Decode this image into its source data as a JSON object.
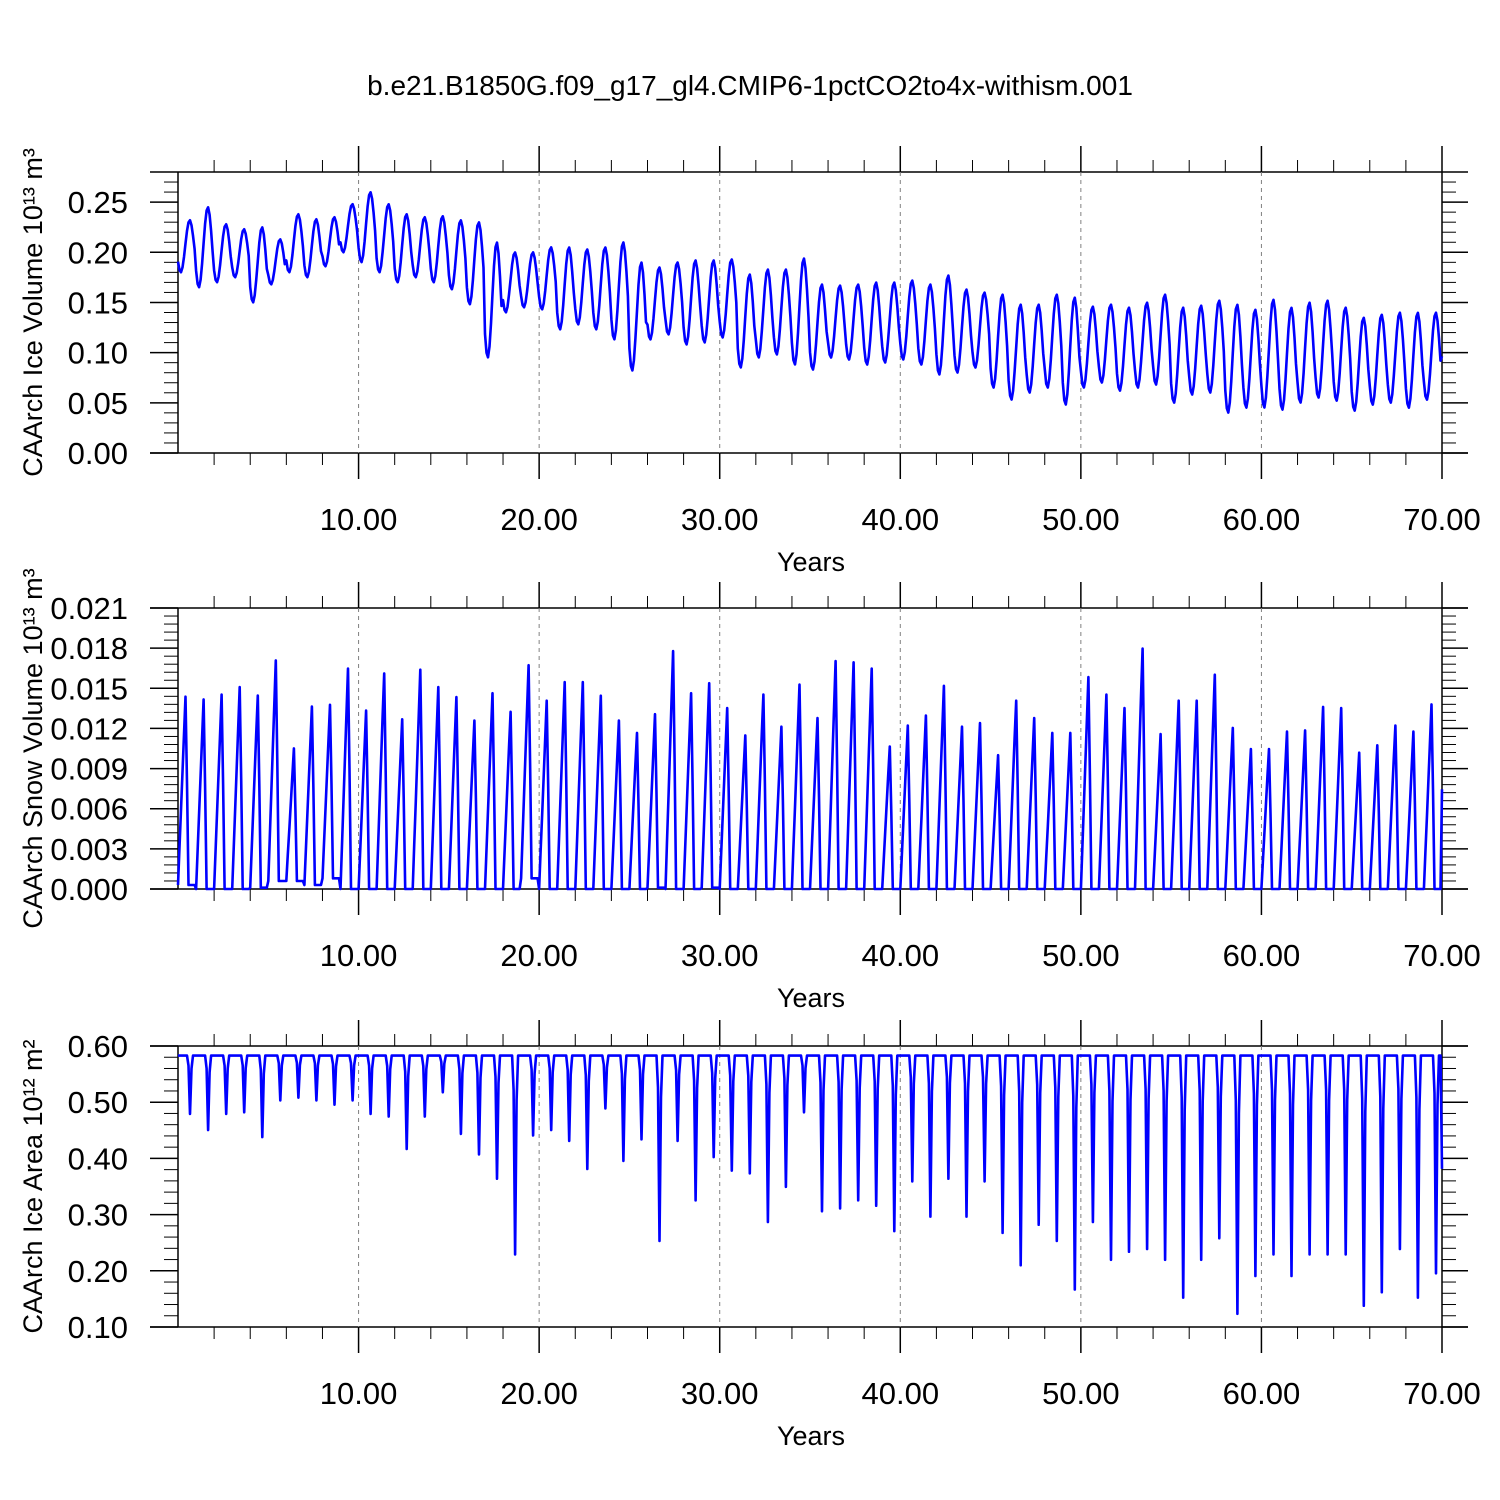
{
  "figure": {
    "title": "b.e21.B1850G.f09_g17_gl4.CMIP6-1pctCO2to4x-withism.001"
  },
  "colors": {
    "series": "#0000ff",
    "axis": "#000000",
    "grid": "#808080"
  },
  "chart_data": [
    {
      "type": "line",
      "name": "ice-volume",
      "ylabel": "CAArch Ice Volume 10¹³ m³",
      "xlabel": "Years",
      "xlim": [
        0,
        70
      ],
      "ylim": [
        0,
        0.28
      ],
      "xticks": [
        10,
        20,
        30,
        40,
        50,
        60,
        70
      ],
      "xtick_labels": [
        "10.00",
        "20.00",
        "30.00",
        "40.00",
        "50.00",
        "60.00",
        "70.00"
      ],
      "yticks": [
        0,
        0.05,
        0.1,
        0.15,
        0.2,
        0.25
      ],
      "ytick_labels": [
        "0.00",
        "0.05",
        "0.10",
        "0.15",
        "0.20",
        "0.25"
      ],
      "grid": "vertical dashed at major x ticks",
      "year_max": [
        0.232,
        0.245,
        0.228,
        0.223,
        0.225,
        0.213,
        0.238,
        0.233,
        0.235,
        0.248,
        0.26,
        0.248,
        0.238,
        0.235,
        0.236,
        0.232,
        0.23,
        0.21,
        0.2,
        0.2,
        0.205,
        0.205,
        0.203,
        0.205,
        0.21,
        0.19,
        0.185,
        0.19,
        0.192,
        0.192,
        0.193,
        0.178,
        0.183,
        0.183,
        0.194,
        0.168,
        0.167,
        0.168,
        0.17,
        0.17,
        0.172,
        0.168,
        0.177,
        0.163,
        0.16,
        0.158,
        0.148,
        0.148,
        0.158,
        0.155,
        0.146,
        0.148,
        0.145,
        0.15,
        0.158,
        0.145,
        0.147,
        0.152,
        0.148,
        0.143,
        0.153,
        0.145,
        0.15,
        0.152,
        0.145,
        0.135,
        0.138,
        0.14,
        0.14,
        0.14
      ],
      "year_min": [
        0.18,
        0.165,
        0.17,
        0.175,
        0.15,
        0.168,
        0.18,
        0.175,
        0.186,
        0.2,
        0.19,
        0.18,
        0.17,
        0.175,
        0.17,
        0.163,
        0.148,
        0.095,
        0.14,
        0.145,
        0.143,
        0.123,
        0.128,
        0.123,
        0.113,
        0.082,
        0.113,
        0.118,
        0.108,
        0.11,
        0.115,
        0.085,
        0.095,
        0.098,
        0.088,
        0.083,
        0.095,
        0.093,
        0.088,
        0.09,
        0.093,
        0.088,
        0.078,
        0.08,
        0.085,
        0.065,
        0.053,
        0.06,
        0.065,
        0.048,
        0.065,
        0.07,
        0.062,
        0.065,
        0.068,
        0.05,
        0.058,
        0.06,
        0.04,
        0.045,
        0.045,
        0.043,
        0.05,
        0.055,
        0.052,
        0.042,
        0.048,
        0.05,
        0.045,
        0.053
      ]
    },
    {
      "type": "line",
      "name": "snow-volume",
      "ylabel": "CAArch Snow Volume 10¹³ m³",
      "xlabel": "Years",
      "xlim": [
        0,
        70
      ],
      "ylim": [
        0,
        0.021
      ],
      "xticks": [
        10,
        20,
        30,
        40,
        50,
        60,
        70
      ],
      "xtick_labels": [
        "10.00",
        "20.00",
        "30.00",
        "40.00",
        "50.00",
        "60.00",
        "70.00"
      ],
      "yticks": [
        0,
        0.003,
        0.006,
        0.009,
        0.012,
        0.015,
        0.018,
        0.021
      ],
      "ytick_labels": [
        "0.000",
        "0.003",
        "0.006",
        "0.009",
        "0.012",
        "0.015",
        "0.018",
        "0.021"
      ],
      "grid": "vertical dashed at major x ticks",
      "year_max": [
        0.0155,
        0.0153,
        0.0157,
        0.0163,
        0.0156,
        0.0184,
        0.0113,
        0.0147,
        0.0148,
        0.0178,
        0.0144,
        0.0174,
        0.0137,
        0.0177,
        0.0163,
        0.0155,
        0.0136,
        0.0158,
        0.0143,
        0.018,
        0.0152,
        0.0167,
        0.0167,
        0.0156,
        0.0136,
        0.0126,
        0.0141,
        0.0192,
        0.0158,
        0.0166,
        0.0146,
        0.0124,
        0.0157,
        0.0131,
        0.0165,
        0.0138,
        0.0184,
        0.0183,
        0.0178,
        0.0115,
        0.0132,
        0.014,
        0.0164,
        0.0131,
        0.0134,
        0.0108,
        0.0152,
        0.0138,
        0.0126,
        0.0126,
        0.0171,
        0.0157,
        0.0146,
        0.0194,
        0.0125,
        0.0152,
        0.0152,
        0.0173,
        0.013,
        0.0113,
        0.0113,
        0.0127,
        0.0128,
        0.0147,
        0.0146,
        0.011,
        0.0116,
        0.0132,
        0.0127,
        0.0149
      ],
      "year_min": [
        0.0003,
        0,
        0,
        0,
        0.0001,
        0.0006,
        0.0006,
        0.0003,
        0.0008,
        0,
        0,
        0,
        0,
        0,
        0,
        0,
        0,
        0,
        0,
        0.0008,
        0,
        0,
        0,
        0,
        0,
        0,
        0.0001,
        0,
        0,
        0.0001,
        0,
        0,
        0,
        0,
        0,
        0,
        0,
        0,
        0,
        0,
        0,
        0,
        0,
        0,
        0,
        0,
        0,
        0,
        0,
        0,
        0,
        0,
        0,
        0,
        0,
        0,
        0,
        0,
        0,
        0,
        0,
        0,
        0,
        0,
        0,
        0,
        0,
        0,
        0,
        0
      ]
    },
    {
      "type": "line",
      "name": "ice-area",
      "ylabel": "CAArch Ice Area 10¹² m²",
      "xlabel": "Years",
      "xlim": [
        0,
        70
      ],
      "ylim": [
        0.1,
        0.6
      ],
      "xticks": [
        10,
        20,
        30,
        40,
        50,
        60,
        70
      ],
      "xtick_labels": [
        "10.00",
        "20.00",
        "30.00",
        "40.00",
        "50.00",
        "60.00",
        "70.00"
      ],
      "yticks": [
        0.1,
        0.2,
        0.3,
        0.4,
        0.5,
        0.6
      ],
      "ytick_labels": [
        "0.10",
        "0.20",
        "0.30",
        "0.40",
        "0.50",
        "0.60"
      ],
      "grid": "vertical dashed at major x ticks",
      "year_max": [
        0.583,
        0.583,
        0.583,
        0.583,
        0.583,
        0.583,
        0.583,
        0.583,
        0.583,
        0.583,
        0.583,
        0.583,
        0.583,
        0.583,
        0.583,
        0.583,
        0.583,
        0.583,
        0.583,
        0.583,
        0.583,
        0.583,
        0.583,
        0.583,
        0.583,
        0.583,
        0.583,
        0.583,
        0.583,
        0.583,
        0.583,
        0.583,
        0.583,
        0.583,
        0.583,
        0.583,
        0.583,
        0.583,
        0.583,
        0.583,
        0.583,
        0.583,
        0.583,
        0.583,
        0.583,
        0.583,
        0.583,
        0.583,
        0.583,
        0.583,
        0.583,
        0.583,
        0.583,
        0.583,
        0.583,
        0.583,
        0.583,
        0.583,
        0.583,
        0.583,
        0.583,
        0.583,
        0.583,
        0.583,
        0.583,
        0.583,
        0.583,
        0.583,
        0.583,
        0.583
      ],
      "year_min": [
        0.475,
        0.445,
        0.475,
        0.478,
        0.432,
        0.5,
        0.505,
        0.5,
        0.492,
        0.5,
        0.475,
        0.47,
        0.41,
        0.47,
        0.515,
        0.438,
        0.4,
        0.355,
        0.215,
        0.435,
        0.445,
        0.425,
        0.373,
        0.485,
        0.388,
        0.428,
        0.24,
        0.425,
        0.315,
        0.395,
        0.37,
        0.365,
        0.275,
        0.34,
        0.478,
        0.295,
        0.3,
        0.315,
        0.305,
        0.258,
        0.35,
        0.285,
        0.355,
        0.285,
        0.35,
        0.255,
        0.195,
        0.27,
        0.24,
        0.15,
        0.275,
        0.205,
        0.22,
        0.225,
        0.205,
        0.135,
        0.205,
        0.245,
        0.105,
        0.175,
        0.215,
        0.175,
        0.215,
        0.215,
        0.215,
        0.12,
        0.145,
        0.225,
        0.135,
        0.18
      ]
    }
  ]
}
